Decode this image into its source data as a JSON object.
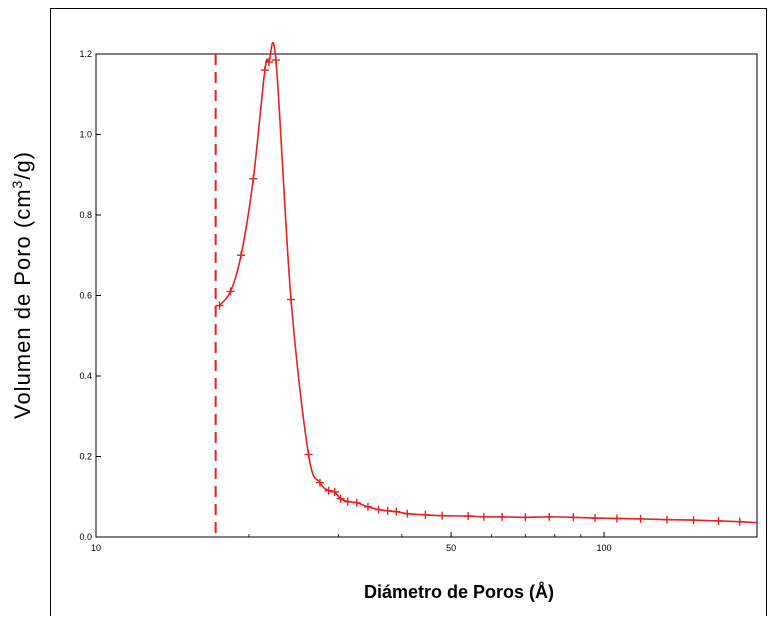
{
  "chart_data": {
    "type": "line",
    "xscale": "log",
    "xlabel": "Diámetro de Poros (Å)",
    "ylabel": "Volumen de Poro (cm³/g)",
    "ylabel_parts": {
      "before": "Volumen de Poro (cm",
      "sup": "3",
      "after": "/g)"
    },
    "xlim": [
      10,
      200
    ],
    "ylim": [
      0,
      1.2
    ],
    "x_ticks": [
      {
        "value": 10,
        "label": "10"
      },
      {
        "value": 50,
        "label": "50"
      },
      {
        "value": 100,
        "label": "100"
      }
    ],
    "y_ticks": [
      {
        "value": 0,
        "label": "0.0"
      },
      {
        "value": 0.2,
        "label": "0.2"
      },
      {
        "value": 0.4,
        "label": "0.4"
      },
      {
        "value": 0.6,
        "label": "0.6"
      },
      {
        "value": 0.8,
        "label": "0.8"
      },
      {
        "value": 1.0,
        "label": "1.0"
      },
      {
        "value": 1.2,
        "label": "1.2"
      }
    ],
    "vline_x": 17.2,
    "line_color": "#e8201f",
    "marker": "plus",
    "series": [
      {
        "x": [
          17.5,
          18.4,
          19.3,
          20.4,
          21.5,
          21.9,
          22.6,
          24.2,
          26.2,
          27.6,
          28.7,
          29.5,
          30.3,
          31.3,
          32.6,
          34.3,
          36.0,
          37.5,
          39.0,
          41.0,
          44.5,
          48.0,
          54.0,
          58.0,
          63.0,
          70.0,
          78.0,
          87.0,
          96.0,
          106.0,
          118.0,
          133.0,
          150.0,
          168.0,
          185.0
        ],
        "y": [
          0.575,
          0.61,
          0.7,
          0.89,
          1.16,
          1.18,
          1.185,
          0.59,
          0.205,
          0.135,
          0.115,
          0.112,
          0.095,
          0.088,
          0.085,
          0.075,
          0.068,
          0.065,
          0.063,
          0.058,
          0.055,
          0.053,
          0.052,
          0.05,
          0.05,
          0.049,
          0.05,
          0.049,
          0.047,
          0.046,
          0.045,
          0.043,
          0.042,
          0.04,
          0.038
        ]
      }
    ]
  }
}
